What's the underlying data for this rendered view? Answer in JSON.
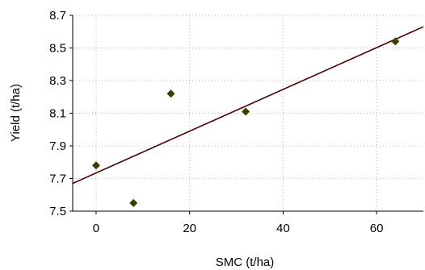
{
  "chart_data": {
    "type": "scatter",
    "xlabel": "SMC (t/ha)",
    "ylabel": "Yield (t/ha)",
    "xlim": [
      -5,
      70
    ],
    "ylim": [
      7.5,
      8.7
    ],
    "x_ticks": [
      0,
      20,
      40,
      60
    ],
    "y_ticks": [
      7.5,
      7.7,
      7.9,
      8.1,
      8.3,
      8.5,
      8.7
    ],
    "y_tick_labels": [
      "7.5",
      "7.7",
      "7.9",
      "8.1",
      "8.3",
      "8.5",
      "8.7"
    ],
    "grid": true,
    "marker_color": "#3d3d00",
    "trendline_color": "#4a0000",
    "series": [
      {
        "points": [
          {
            "x": 0,
            "y": 7.78
          },
          {
            "x": 8,
            "y": 7.55
          },
          {
            "x": 16,
            "y": 8.22
          },
          {
            "x": 32,
            "y": 8.11
          },
          {
            "x": 64,
            "y": 8.54
          }
        ]
      }
    ],
    "trendline": {
      "x": [
        -5,
        70
      ],
      "y": [
        7.67,
        8.63
      ]
    }
  }
}
